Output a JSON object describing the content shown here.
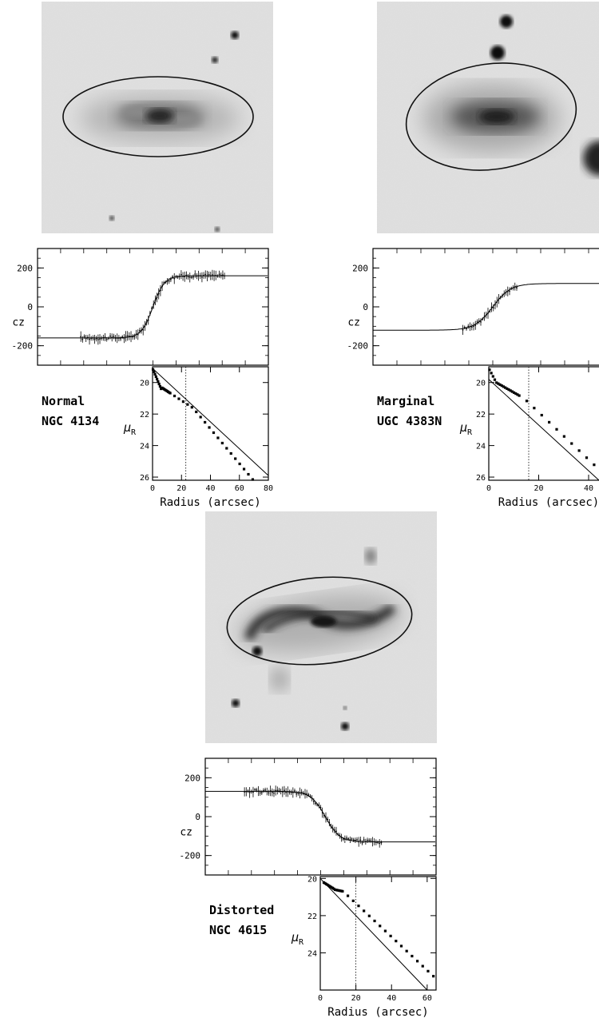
{
  "panels": [
    {
      "id": "ngc4134",
      "class_label": "Normal",
      "galaxy_name": "NGC 4134",
      "cz_axis": {
        "label": "cz",
        "ticks": [
          200,
          0,
          -200
        ],
        "ylim": [
          -300,
          300
        ]
      },
      "mu_axis": {
        "label": "μ",
        "label_sub": "R",
        "ticks": [
          20,
          22,
          24,
          26
        ],
        "ylim": [
          19,
          26.2
        ]
      },
      "radius_axis": {
        "label": "Radius (arcsec)",
        "ticks": [
          0,
          20,
          40,
          60,
          80
        ],
        "xlim": [
          0,
          80
        ]
      },
      "rotation_curve": {
        "vmax": 160,
        "rt": 4,
        "vsys": 0
      },
      "profile": {
        "disk_mu0": 19.1,
        "disk_slope": 0.085,
        "marker_radius": 23
      }
    },
    {
      "id": "ugc4383n",
      "class_label": "Marginal",
      "galaxy_name": "UGC 4383N",
      "cz_axis": {
        "label": "cz",
        "ticks": [
          200,
          0,
          -200
        ],
        "ylim": [
          -300,
          300
        ]
      },
      "mu_axis": {
        "label": "μ",
        "label_sub": "R",
        "ticks": [
          20,
          22,
          24,
          26
        ],
        "ylim": [
          19,
          26.2
        ]
      },
      "radius_axis": {
        "label": "Radius (arcsec)",
        "ticks": [
          0,
          20,
          40
        ],
        "xlim": [
          0,
          48
        ]
      },
      "rotation_curve": {
        "vmax": 120,
        "rt": 6,
        "vsys": 0
      },
      "profile": {
        "disk_mu0": 19.8,
        "disk_slope": 0.145,
        "marker_radius": 16
      }
    },
    {
      "id": "ngc4615",
      "class_label": "Distorted",
      "galaxy_name": "NGC 4615",
      "cz_axis": {
        "label": "cz",
        "ticks": [
          200,
          0,
          -200
        ],
        "ylim": [
          -300,
          300
        ]
      },
      "mu_axis": {
        "label": "μ",
        "label_sub": "R",
        "ticks": [
          20,
          22,
          24
        ],
        "ylim": [
          19.9,
          26
        ]
      },
      "radius_axis": {
        "label": "Radius (arcsec)",
        "ticks": [
          0,
          20,
          40,
          60
        ],
        "xlim": [
          0,
          65
        ]
      },
      "rotation_curve": {
        "vmax": 130,
        "rt": 5,
        "vsys": 0
      },
      "profile": {
        "disk_mu0": 20.0,
        "disk_slope": 0.1,
        "marker_radius": 20
      }
    }
  ],
  "colors": {
    "ink": "#000000",
    "sky": "#d9d9d9",
    "paper": "#ffffff"
  }
}
